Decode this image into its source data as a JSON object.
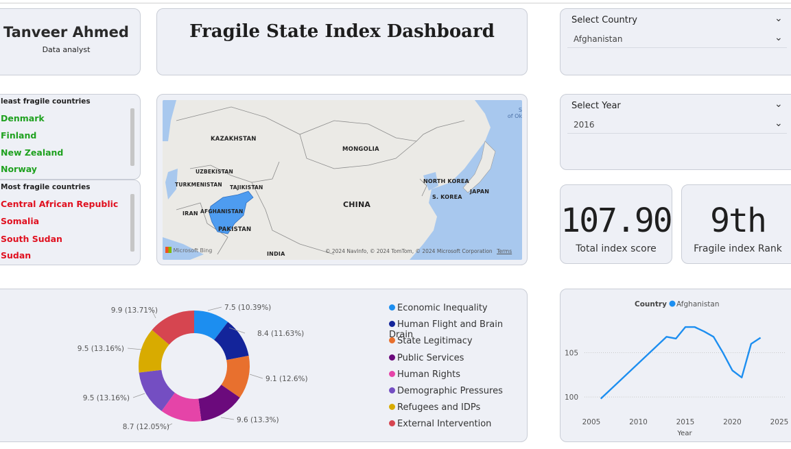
{
  "profile": {
    "name": "Tanveer Ahmed",
    "role": "Data analyst"
  },
  "dashboard_title": "Fragile State Index Dashboard",
  "least_fragile": {
    "header": "least fragile countries",
    "items": [
      "Denmark",
      "Finland",
      "New Zealand",
      "Norway"
    ],
    "color": "#1fa11f"
  },
  "most_fragile": {
    "header": "Most fragile countries",
    "items": [
      "Central African Republic",
      "Somalia",
      "South Sudan",
      "Sudan"
    ],
    "color": "#e0101f"
  },
  "map": {
    "labels": [
      "KAZAKHSTAN",
      "MONGOLIA",
      "UZBEKISTAN",
      "TURKMENISTAN",
      "TAJIKISTAN",
      "NORTH KOREA",
      "JAPAN",
      "S. KOREA",
      "CHINA",
      "IRAN",
      "AFGHANISTAN",
      "PAKISTAN",
      "INDIA"
    ],
    "attribution": "© 2024 NavInfo, © 2024 TomTom, © 2024 Microsoft Corporation",
    "terms": "Terms",
    "provider": "Microsoft Bing",
    "corner_label": "S\nof Ok",
    "highlight_color": "#4e9cf0"
  },
  "country_slicer": {
    "label": "Select Country",
    "value": "Afghanistan"
  },
  "year_slicer": {
    "label": "Select Year",
    "value": "2016"
  },
  "kpis": {
    "score_value": "107.90",
    "score_caption": "Total index score",
    "rank_value": "9th",
    "rank_caption": "Fragile index Rank"
  },
  "chart_data": [
    {
      "type": "pie",
      "slices": [
        {
          "name": "Economic Inequality",
          "value": 7.5,
          "label": "7.5 (10.39%)",
          "color": "#1c8ef0"
        },
        {
          "name": "Human Flight and Brain Drain",
          "value": 8.4,
          "label": "8.4 (11.63%)",
          "color": "#13249a"
        },
        {
          "name": "State Legitimacy",
          "value": 9.1,
          "label": "9.1 (12.6%)",
          "color": "#e8702e"
        },
        {
          "name": "Public Services",
          "value": 9.6,
          "label": "9.6 (13.3%)",
          "color": "#6b0a7c"
        },
        {
          "name": "Human Rights",
          "value": 8.7,
          "label": "8.7 (12.05%)",
          "color": "#e544a8"
        },
        {
          "name": "Demographic Pressures",
          "value": 9.5,
          "label": "9.5 (13.16%)",
          "color": "#744ec2"
        },
        {
          "name": "Refugees and IDPs",
          "value": 9.5,
          "label": "9.5 (13.16%)",
          "color": "#d8ab00"
        },
        {
          "name": "External Intervention",
          "value": 9.9,
          "label": "9.9 (13.71%)",
          "color": "#d64550"
        }
      ]
    },
    {
      "type": "line",
      "legend_title": "Country",
      "xlabel": "Year",
      "ylabel": "",
      "xlim": [
        2005,
        2025
      ],
      "ylim": [
        99,
        110
      ],
      "xticks": [
        2005,
        2010,
        2015,
        2020,
        2025
      ],
      "yticks": [
        100,
        105
      ],
      "grid": true,
      "series": [
        {
          "name": "Afghanistan",
          "color": "#1c8ef0",
          "points": [
            [
              2006,
              99.8
            ],
            [
              2013,
              106.8
            ],
            [
              2014,
              106.6
            ],
            [
              2015,
              107.9
            ],
            [
              2016,
              107.9
            ],
            [
              2017,
              107.4
            ],
            [
              2018,
              106.8
            ],
            [
              2019,
              105.0
            ],
            [
              2020,
              103.0
            ],
            [
              2021,
              102.2
            ],
            [
              2022,
              106.0
            ],
            [
              2023,
              106.7
            ]
          ]
        }
      ]
    }
  ]
}
